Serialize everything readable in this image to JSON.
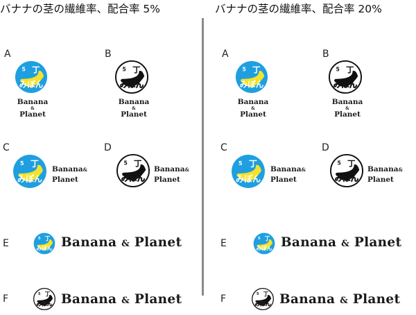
{
  "panels": [
    {
      "title": "バナナの茎の繊維率、配合率 5%"
    },
    {
      "title": "バナナの茎の繊維率、配合率 20%"
    }
  ],
  "variant_labels": [
    "A",
    "B",
    "C",
    "D",
    "E",
    "F"
  ],
  "wordmark": {
    "line1": "Banana",
    "amp": "&",
    "line2": "Planet"
  },
  "logo_mark": {
    "number": "5",
    "kanji": "丁",
    "kana": "みぽん"
  },
  "colors": {
    "blue": "#1f9fe0",
    "yellow": "#f5e22a",
    "black": "#111111"
  }
}
